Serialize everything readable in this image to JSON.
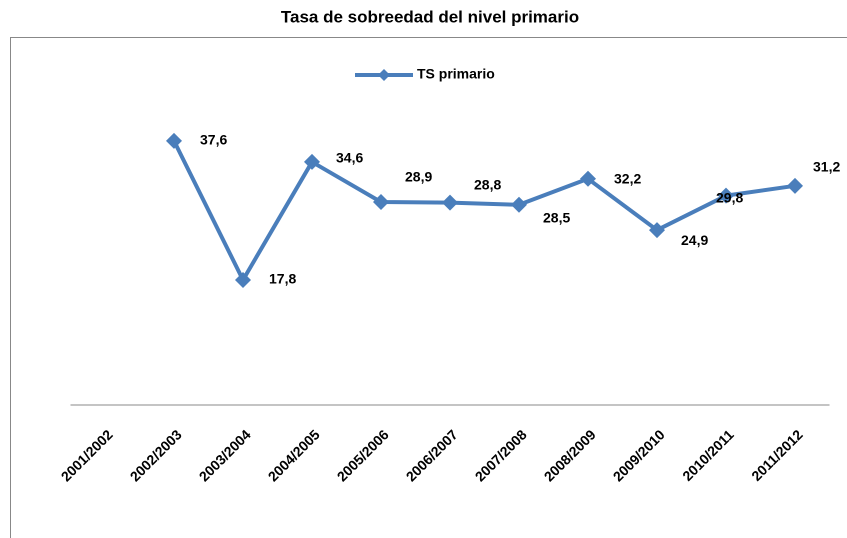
{
  "chart_data": {
    "type": "line",
    "title": "Tasa de sobreedad del nivel primario",
    "categories": [
      "2001/2002",
      "2002/2003",
      "2003/2004",
      "2004/2005",
      "2005/2006",
      "2006/2007",
      "2007/2008",
      "2008/2009",
      "2009/2010",
      "2010/2011",
      "2011/2012"
    ],
    "series": [
      {
        "name": "TS primario",
        "color": "#4a7ebb",
        "values": [
          null,
          37.6,
          17.8,
          34.6,
          28.9,
          28.8,
          28.5,
          32.2,
          24.9,
          29.8,
          31.2
        ],
        "value_labels": [
          null,
          "37,6",
          "17,8",
          "34,6",
          "28,9",
          "28,8",
          "28,5",
          "32,2",
          "24,9",
          "29,8",
          "31,2"
        ]
      }
    ],
    "ylim": [
      0,
      40
    ],
    "legend": "top"
  }
}
